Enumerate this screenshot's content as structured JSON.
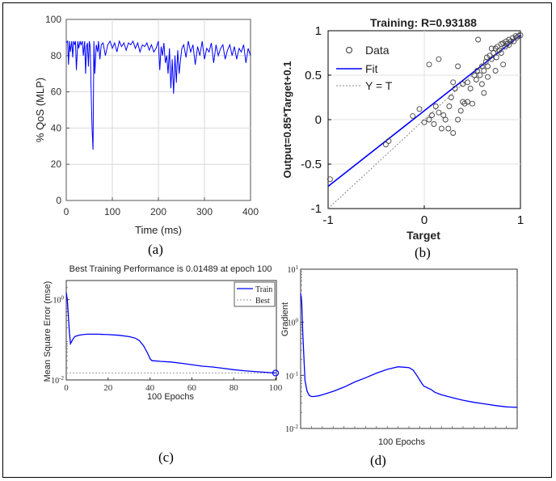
{
  "charts": [
    {
      "id": "a",
      "caption": "(a)",
      "chart_data": {
        "type": "line",
        "title": "",
        "xlabel": "Time (ms)",
        "ylabel": "% QoS (MLP)",
        "xlim": [
          0,
          400
        ],
        "ylim": [
          0,
          100
        ],
        "xticks": [
          0,
          100,
          200,
          300,
          400
        ],
        "yticks": [
          0,
          20,
          40,
          60,
          80,
          100
        ],
        "grid": true,
        "series": [
          {
            "color": "#0000ff",
            "x": [
              0,
              3,
              5,
              7,
              9,
              12,
              14,
              16,
              18,
              20,
              22,
              25,
              27,
              30,
              32,
              35,
              37,
              40,
              42,
              44,
              46,
              48,
              50,
              52,
              54,
              56,
              58,
              60,
              62,
              65,
              68,
              70,
              73,
              76,
              80,
              85,
              90,
              95,
              100,
              105,
              110,
              115,
              120,
              125,
              130,
              135,
              140,
              145,
              150,
              155,
              160,
              165,
              170,
              175,
              180,
              185,
              190,
              195,
              200,
              203,
              206,
              209,
              212,
              215,
              218,
              221,
              224,
              227,
              230,
              233,
              236,
              239,
              242,
              245,
              248,
              251,
              255,
              260,
              265,
              270,
              275,
              280,
              285,
              290,
              295,
              300,
              305,
              310,
              315,
              320,
              325,
              330,
              335,
              340,
              345,
              350,
              355,
              360,
              365,
              370,
              375,
              380,
              385,
              390,
              395,
              400
            ],
            "values": [
              87,
              88,
              75,
              88,
              82,
              88,
              79,
              88,
              86,
              88,
              72,
              88,
              84,
              88,
              86,
              88,
              80,
              88,
              70,
              85,
              87,
              74,
              88,
              85,
              60,
              40,
              28,
              88,
              70,
              86,
              82,
              88,
              78,
              86,
              87,
              80,
              86,
              88,
              84,
              87,
              82,
              88,
              85,
              87,
              83,
              87,
              86,
              88,
              84,
              87,
              82,
              86,
              85,
              87,
              83,
              86,
              82,
              84,
              88,
              72,
              85,
              80,
              87,
              76,
              80,
              70,
              84,
              62,
              78,
              59,
              80,
              65,
              83,
              70,
              78,
              84,
              86,
              79,
              88,
              82,
              86,
              75,
              85,
              80,
              88,
              78,
              84,
              82,
              87,
              76,
              86,
              80,
              84,
              86,
              78,
              83,
              86,
              80,
              85,
              78,
              84,
              82,
              86,
              76,
              84,
              80
            ]
          }
        ]
      }
    },
    {
      "id": "b",
      "caption": "(b)",
      "chart_data": {
        "type": "scatter",
        "title": "Training: R=0.93188",
        "xlabel": "Target",
        "ylabel": "Output=0.85*Target+0.1",
        "xlim": [
          -1,
          1
        ],
        "ylim": [
          -1,
          1
        ],
        "xticks": [
          -1,
          0,
          1
        ],
        "yticks": [
          -1,
          -0.5,
          0,
          0.5,
          1
        ],
        "grid": true,
        "legend": {
          "position": "top-left",
          "entries": [
            "Data",
            "Fit",
            "Y = T"
          ]
        },
        "fit": {
          "slope": 0.85,
          "intercept": 0.1,
          "color": "#0000ff"
        },
        "identity_color": "#888888",
        "points": [
          [
            -0.98,
            -0.67
          ],
          [
            -0.4,
            -0.28
          ],
          [
            -0.37,
            -0.24
          ],
          [
            -0.12,
            0.04
          ],
          [
            -0.05,
            0.12
          ],
          [
            0.0,
            -0.03
          ],
          [
            0.05,
            0.0
          ],
          [
            0.08,
            0.05
          ],
          [
            0.1,
            -0.05
          ],
          [
            0.12,
            0.15
          ],
          [
            0.15,
            0.08
          ],
          [
            0.18,
            -0.1
          ],
          [
            0.2,
            0.05
          ],
          [
            0.22,
            0.0
          ],
          [
            0.25,
            -0.1
          ],
          [
            0.26,
            0.15
          ],
          [
            0.28,
            0.25
          ],
          [
            0.3,
            -0.15
          ],
          [
            0.3,
            0.42
          ],
          [
            0.32,
            0.35
          ],
          [
            0.35,
            0.0
          ],
          [
            0.38,
            0.1
          ],
          [
            0.4,
            0.4
          ],
          [
            0.42,
            0.18
          ],
          [
            0.45,
            0.2
          ],
          [
            0.45,
            0.42
          ],
          [
            0.48,
            0.35
          ],
          [
            0.5,
            0.18
          ],
          [
            0.52,
            0.5
          ],
          [
            0.54,
            0.45
          ],
          [
            0.55,
            0.55
          ],
          [
            0.56,
            0.9
          ],
          [
            0.58,
            0.5
          ],
          [
            0.6,
            0.6
          ],
          [
            0.62,
            0.55
          ],
          [
            0.64,
            0.65
          ],
          [
            0.65,
            0.7
          ],
          [
            0.66,
            0.6
          ],
          [
            0.68,
            0.72
          ],
          [
            0.7,
            0.68
          ],
          [
            0.7,
            0.8
          ],
          [
            0.72,
            0.75
          ],
          [
            0.74,
            0.8
          ],
          [
            0.75,
            0.7
          ],
          [
            0.76,
            0.82
          ],
          [
            0.78,
            0.78
          ],
          [
            0.8,
            0.85
          ],
          [
            0.8,
            0.75
          ],
          [
            0.82,
            0.86
          ],
          [
            0.84,
            0.82
          ],
          [
            0.85,
            0.88
          ],
          [
            0.86,
            0.85
          ],
          [
            0.88,
            0.9
          ],
          [
            0.88,
            0.84
          ],
          [
            0.9,
            0.88
          ],
          [
            0.92,
            0.92
          ],
          [
            0.93,
            0.88
          ],
          [
            0.95,
            0.94
          ],
          [
            0.96,
            0.92
          ],
          [
            0.98,
            0.94
          ],
          [
            1.0,
            0.95
          ],
          [
            0.6,
            0.4
          ],
          [
            0.62,
            0.3
          ],
          [
            0.4,
            0.2
          ],
          [
            0.05,
            0.62
          ],
          [
            0.15,
            0.68
          ],
          [
            0.35,
            0.6
          ],
          [
            0.74,
            0.55
          ],
          [
            0.82,
            0.62
          ],
          [
            0.66,
            0.48
          ]
        ]
      }
    },
    {
      "id": "c",
      "caption": "(c)",
      "chart_data": {
        "type": "line",
        "title": "Best Training Performance is 0.01489 at epoch 100",
        "xlabel": "100 Epochs",
        "ylabel": "Mean Square Error (mse)",
        "xlim": [
          0,
          100
        ],
        "ylim": [
          0.01,
          3
        ],
        "yscale": "log",
        "xticks": [
          0,
          20,
          40,
          60,
          80,
          100
        ],
        "yticks": [
          {
            "value": 1,
            "label": "10^0"
          },
          {
            "value": 0.01,
            "label": "10^-2"
          }
        ],
        "grid": false,
        "legend": {
          "position": "top-right",
          "entries": [
            "Train",
            "Best"
          ]
        },
        "series": [
          {
            "name": "Train",
            "color": "#0000ff",
            "x": [
              0,
              0.5,
              1,
              1.5,
              2,
              3,
              4,
              5,
              6,
              8,
              10,
              15,
              20,
              25,
              30,
              33,
              35,
              37,
              39,
              40,
              41,
              42,
              45,
              50,
              55,
              60,
              65,
              70,
              75,
              80,
              85,
              90,
              95,
              100
            ],
            "values": [
              1.5,
              1.0,
              0.4,
              0.15,
              0.08,
              0.1,
              0.12,
              0.125,
              0.13,
              0.135,
              0.138,
              0.138,
              0.135,
              0.13,
              0.12,
              0.11,
              0.095,
              0.07,
              0.045,
              0.034,
              0.03,
              0.03,
              0.029,
              0.028,
              0.026,
              0.024,
              0.022,
              0.021,
              0.0195,
              0.018,
              0.017,
              0.0162,
              0.0155,
              0.01489
            ]
          },
          {
            "name": "Best",
            "color": "#999999",
            "constant": 0.01489
          }
        ],
        "best_marker": {
          "x": 100,
          "y": 0.01489
        }
      }
    },
    {
      "id": "d",
      "caption": "(d)",
      "chart_data": {
        "type": "line",
        "title": "",
        "xlabel": "100 Epochs",
        "ylabel": "Gradient",
        "xlim": [
          0,
          100
        ],
        "ylim": [
          0.01,
          10
        ],
        "yscale": "log",
        "yticks": [
          {
            "value": 10,
            "label": "10^1"
          },
          {
            "value": 1,
            "label": "10^0"
          },
          {
            "value": 0.1,
            "label": "10^-1"
          },
          {
            "value": 0.01,
            "label": "10^-2"
          }
        ],
        "grid": false,
        "series": [
          {
            "color": "#0000ff",
            "x": [
              0,
              0.5,
              1,
              2,
              3,
              4,
              5,
              6,
              8,
              10,
              15,
              20,
              25,
              30,
              35,
              40,
              45,
              50,
              52,
              54,
              56,
              57,
              58,
              59,
              60,
              62,
              65,
              70,
              75,
              80,
              85,
              90,
              95,
              100
            ],
            "values": [
              3.5,
              2.5,
              0.6,
              0.08,
              0.05,
              0.042,
              0.04,
              0.04,
              0.041,
              0.043,
              0.05,
              0.06,
              0.075,
              0.09,
              0.11,
              0.13,
              0.145,
              0.14,
              0.125,
              0.095,
              0.07,
              0.062,
              0.06,
              0.057,
              0.055,
              0.048,
              0.043,
              0.038,
              0.034,
              0.031,
              0.029,
              0.027,
              0.0255,
              0.025
            ]
          }
        ]
      }
    }
  ]
}
